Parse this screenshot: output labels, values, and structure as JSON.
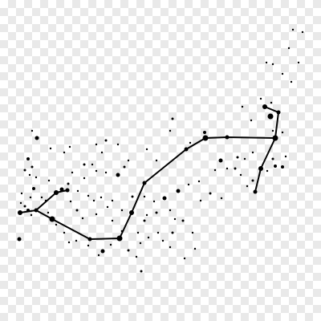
{
  "figure": {
    "subject": "scorpius-constellation",
    "background": "transparent-checkerboard",
    "line_color": "#000000",
    "star_color": "#000000"
  }
}
